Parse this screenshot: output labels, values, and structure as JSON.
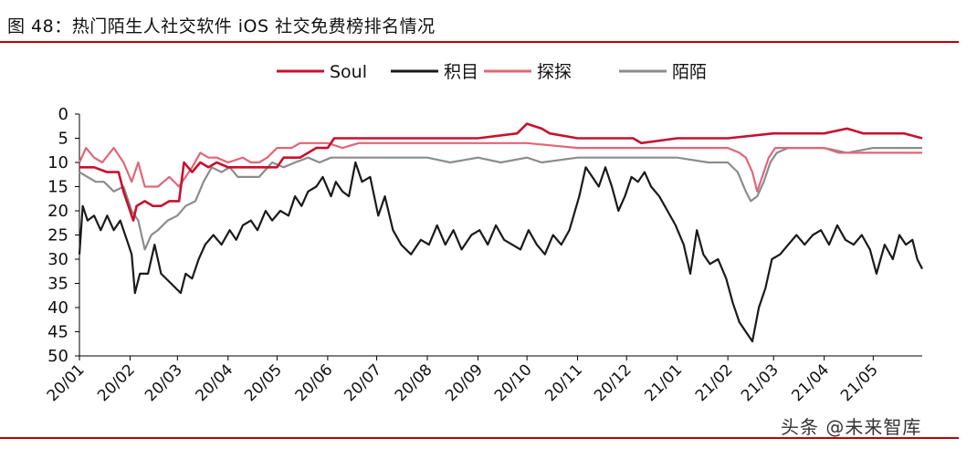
{
  "figure_title": "图 48：热门陌生人社交软件 iOS 社交免费榜排名情况",
  "watermark": "头条 @未来智库",
  "colors": {
    "rule": "#c00000",
    "axis": "#000000",
    "title": "#111111"
  },
  "chart_data": {
    "type": "line",
    "title": "",
    "xlabel": "",
    "ylabel": "",
    "ylim": [
      0,
      50
    ],
    "y_inverted": true,
    "yticks": [
      0,
      5,
      10,
      15,
      20,
      25,
      30,
      35,
      40,
      45,
      50
    ],
    "xlim": [
      "2020-01-01",
      "2021-05-31"
    ],
    "xticks": [
      "20/01",
      "20/02",
      "20/03",
      "20/04",
      "20/05",
      "20/06",
      "20/07",
      "20/08",
      "20/09",
      "20/10",
      "20/11",
      "20/12",
      "21/01",
      "21/02",
      "21/03",
      "21/04",
      "21/05"
    ],
    "grid": false,
    "legend_position": "top",
    "series": [
      {
        "name": "Soul",
        "color": "#c8102e",
        "points": [
          [
            "2020-01-01",
            11
          ],
          [
            "2020-01-10",
            11
          ],
          [
            "2020-01-18",
            12
          ],
          [
            "2020-01-25",
            12
          ],
          [
            "2020-01-28",
            16
          ],
          [
            "2020-02-03",
            22
          ],
          [
            "2020-02-05",
            19
          ],
          [
            "2020-02-10",
            18
          ],
          [
            "2020-02-15",
            19
          ],
          [
            "2020-02-20",
            19
          ],
          [
            "2020-02-25",
            18
          ],
          [
            "2020-03-02",
            18
          ],
          [
            "2020-03-05",
            10
          ],
          [
            "2020-03-10",
            12
          ],
          [
            "2020-03-15",
            10
          ],
          [
            "2020-03-20",
            11
          ],
          [
            "2020-03-25",
            10
          ],
          [
            "2020-04-01",
            11
          ],
          [
            "2020-04-10",
            11
          ],
          [
            "2020-04-20",
            11
          ],
          [
            "2020-05-01",
            11
          ],
          [
            "2020-05-05",
            9
          ],
          [
            "2020-05-15",
            9
          ],
          [
            "2020-05-25",
            7
          ],
          [
            "2020-06-01",
            7
          ],
          [
            "2020-06-05",
            5
          ],
          [
            "2020-06-15",
            5
          ],
          [
            "2020-07-01",
            5
          ],
          [
            "2020-08-01",
            5
          ],
          [
            "2020-09-01",
            5
          ],
          [
            "2020-09-25",
            4
          ],
          [
            "2020-10-01",
            2
          ],
          [
            "2020-10-10",
            3
          ],
          [
            "2020-10-15",
            4
          ],
          [
            "2020-11-01",
            5
          ],
          [
            "2020-12-01",
            5
          ],
          [
            "2020-12-05",
            5
          ],
          [
            "2020-12-10",
            6
          ],
          [
            "2021-01-01",
            5
          ],
          [
            "2021-02-01",
            5
          ],
          [
            "2021-03-01",
            4
          ],
          [
            "2021-03-15",
            4
          ],
          [
            "2021-04-01",
            4
          ],
          [
            "2021-04-15",
            3
          ],
          [
            "2021-04-25",
            4
          ],
          [
            "2021-05-01",
            4
          ],
          [
            "2021-05-20",
            4
          ],
          [
            "2021-05-31",
            5
          ]
        ]
      },
      {
        "name": "积目",
        "color": "#1a1a1a",
        "points": [
          [
            "2020-01-01",
            29
          ],
          [
            "2020-01-03",
            19
          ],
          [
            "2020-01-06",
            22
          ],
          [
            "2020-01-10",
            21
          ],
          [
            "2020-01-14",
            24
          ],
          [
            "2020-01-18",
            21
          ],
          [
            "2020-01-22",
            24
          ],
          [
            "2020-01-26",
            22
          ],
          [
            "2020-01-30",
            26
          ],
          [
            "2020-02-02",
            29
          ],
          [
            "2020-02-04",
            37
          ],
          [
            "2020-02-07",
            33
          ],
          [
            "2020-02-12",
            33
          ],
          [
            "2020-02-16",
            27
          ],
          [
            "2020-02-20",
            33
          ],
          [
            "2020-02-26",
            35
          ],
          [
            "2020-03-03",
            37
          ],
          [
            "2020-03-06",
            33
          ],
          [
            "2020-03-10",
            34
          ],
          [
            "2020-03-14",
            30
          ],
          [
            "2020-03-18",
            27
          ],
          [
            "2020-03-23",
            25
          ],
          [
            "2020-03-28",
            27
          ],
          [
            "2020-04-02",
            24
          ],
          [
            "2020-04-06",
            26
          ],
          [
            "2020-04-10",
            23
          ],
          [
            "2020-04-15",
            22
          ],
          [
            "2020-04-19",
            24
          ],
          [
            "2020-04-24",
            20
          ],
          [
            "2020-04-28",
            22
          ],
          [
            "2020-05-03",
            20
          ],
          [
            "2020-05-08",
            21
          ],
          [
            "2020-05-12",
            17
          ],
          [
            "2020-05-16",
            19
          ],
          [
            "2020-05-20",
            16
          ],
          [
            "2020-05-25",
            15
          ],
          [
            "2020-05-29",
            13
          ],
          [
            "2020-06-03",
            17
          ],
          [
            "2020-06-06",
            14
          ],
          [
            "2020-06-10",
            16
          ],
          [
            "2020-06-14",
            17
          ],
          [
            "2020-06-18",
            10
          ],
          [
            "2020-06-22",
            14
          ],
          [
            "2020-06-27",
            13
          ],
          [
            "2020-07-02",
            21
          ],
          [
            "2020-07-06",
            17
          ],
          [
            "2020-07-11",
            24
          ],
          [
            "2020-07-16",
            27
          ],
          [
            "2020-07-22",
            29
          ],
          [
            "2020-07-28",
            26
          ],
          [
            "2020-08-02",
            27
          ],
          [
            "2020-08-07",
            23
          ],
          [
            "2020-08-12",
            27
          ],
          [
            "2020-08-17",
            24
          ],
          [
            "2020-08-22",
            28
          ],
          [
            "2020-08-28",
            25
          ],
          [
            "2020-09-02",
            24
          ],
          [
            "2020-09-07",
            27
          ],
          [
            "2020-09-12",
            23
          ],
          [
            "2020-09-17",
            26
          ],
          [
            "2020-09-22",
            27
          ],
          [
            "2020-09-27",
            28
          ],
          [
            "2020-10-02",
            24
          ],
          [
            "2020-10-07",
            27
          ],
          [
            "2020-10-12",
            29
          ],
          [
            "2020-10-17",
            25
          ],
          [
            "2020-10-22",
            27
          ],
          [
            "2020-10-27",
            24
          ],
          [
            "2020-11-02",
            17
          ],
          [
            "2020-11-06",
            11
          ],
          [
            "2020-11-10",
            13
          ],
          [
            "2020-11-14",
            15
          ],
          [
            "2020-11-18",
            11
          ],
          [
            "2020-11-22",
            15
          ],
          [
            "2020-11-26",
            20
          ],
          [
            "2020-11-30",
            17
          ],
          [
            "2020-12-04",
            13
          ],
          [
            "2020-12-08",
            14
          ],
          [
            "2020-12-12",
            12
          ],
          [
            "2020-12-16",
            15
          ],
          [
            "2020-12-21",
            17
          ],
          [
            "2020-12-26",
            20
          ],
          [
            "2020-12-31",
            23
          ],
          [
            "2021-01-05",
            27
          ],
          [
            "2021-01-09",
            33
          ],
          [
            "2021-01-13",
            24
          ],
          [
            "2021-01-17",
            29
          ],
          [
            "2021-01-21",
            31
          ],
          [
            "2021-01-26",
            30
          ],
          [
            "2021-01-31",
            34
          ],
          [
            "2021-02-04",
            39
          ],
          [
            "2021-02-08",
            43
          ],
          [
            "2021-02-12",
            45
          ],
          [
            "2021-02-16",
            47
          ],
          [
            "2021-02-20",
            40
          ],
          [
            "2021-02-24",
            36
          ],
          [
            "2021-02-28",
            30
          ],
          [
            "2021-03-05",
            29
          ],
          [
            "2021-03-10",
            27
          ],
          [
            "2021-03-15",
            25
          ],
          [
            "2021-03-20",
            27
          ],
          [
            "2021-03-25",
            25
          ],
          [
            "2021-03-30",
            24
          ],
          [
            "2021-04-04",
            27
          ],
          [
            "2021-04-09",
            23
          ],
          [
            "2021-04-14",
            26
          ],
          [
            "2021-04-19",
            27
          ],
          [
            "2021-04-24",
            25
          ],
          [
            "2021-04-29",
            28
          ],
          [
            "2021-05-03",
            33
          ],
          [
            "2021-05-08",
            27
          ],
          [
            "2021-05-13",
            30
          ],
          [
            "2021-05-17",
            25
          ],
          [
            "2021-05-21",
            27
          ],
          [
            "2021-05-25",
            26
          ],
          [
            "2021-05-28",
            30
          ],
          [
            "2021-05-31",
            32
          ]
        ]
      },
      {
        "name": "探探",
        "color": "#e06677",
        "points": [
          [
            "2020-01-01",
            10
          ],
          [
            "2020-01-05",
            7
          ],
          [
            "2020-01-10",
            9
          ],
          [
            "2020-01-15",
            10
          ],
          [
            "2020-01-22",
            7
          ],
          [
            "2020-01-28",
            10
          ],
          [
            "2020-02-02",
            14
          ],
          [
            "2020-02-06",
            10
          ],
          [
            "2020-02-10",
            15
          ],
          [
            "2020-02-18",
            15
          ],
          [
            "2020-02-25",
            13
          ],
          [
            "2020-03-02",
            15
          ],
          [
            "2020-03-06",
            13
          ],
          [
            "2020-03-10",
            11
          ],
          [
            "2020-03-15",
            8
          ],
          [
            "2020-03-20",
            9
          ],
          [
            "2020-03-25",
            9
          ],
          [
            "2020-04-01",
            10
          ],
          [
            "2020-04-10",
            9
          ],
          [
            "2020-04-15",
            10
          ],
          [
            "2020-04-20",
            10
          ],
          [
            "2020-04-25",
            9
          ],
          [
            "2020-05-01",
            7
          ],
          [
            "2020-05-10",
            7
          ],
          [
            "2020-05-15",
            6
          ],
          [
            "2020-05-25",
            6
          ],
          [
            "2020-06-01",
            6
          ],
          [
            "2020-06-10",
            7
          ],
          [
            "2020-06-20",
            6
          ],
          [
            "2020-07-01",
            6
          ],
          [
            "2020-08-01",
            6
          ],
          [
            "2020-09-01",
            6
          ],
          [
            "2020-10-01",
            6
          ],
          [
            "2020-11-01",
            7
          ],
          [
            "2020-12-01",
            7
          ],
          [
            "2021-01-01",
            7
          ],
          [
            "2021-01-15",
            7
          ],
          [
            "2021-01-25",
            7
          ],
          [
            "2021-02-01",
            7
          ],
          [
            "2021-02-08",
            8
          ],
          [
            "2021-02-12",
            9
          ],
          [
            "2021-02-16",
            12
          ],
          [
            "2021-02-19",
            16
          ],
          [
            "2021-02-22",
            13
          ],
          [
            "2021-02-26",
            9
          ],
          [
            "2021-03-02",
            7
          ],
          [
            "2021-03-10",
            7
          ],
          [
            "2021-04-01",
            7
          ],
          [
            "2021-04-10",
            8
          ],
          [
            "2021-04-20",
            8
          ],
          [
            "2021-05-01",
            8
          ],
          [
            "2021-05-31",
            8
          ]
        ]
      },
      {
        "name": "陌陌",
        "color": "#8c8c8c",
        "points": [
          [
            "2020-01-01",
            12
          ],
          [
            "2020-01-06",
            13
          ],
          [
            "2020-01-11",
            14
          ],
          [
            "2020-01-16",
            14
          ],
          [
            "2020-01-22",
            16
          ],
          [
            "2020-01-28",
            15
          ],
          [
            "2020-02-02",
            20
          ],
          [
            "2020-02-06",
            22
          ],
          [
            "2020-02-10",
            28
          ],
          [
            "2020-02-14",
            25
          ],
          [
            "2020-02-18",
            24
          ],
          [
            "2020-02-24",
            22
          ],
          [
            "2020-03-01",
            21
          ],
          [
            "2020-03-06",
            19
          ],
          [
            "2020-03-12",
            18
          ],
          [
            "2020-03-17",
            14
          ],
          [
            "2020-03-22",
            11
          ],
          [
            "2020-03-28",
            12
          ],
          [
            "2020-04-02",
            11
          ],
          [
            "2020-04-07",
            13
          ],
          [
            "2020-04-14",
            13
          ],
          [
            "2020-04-20",
            13
          ],
          [
            "2020-04-28",
            10
          ],
          [
            "2020-05-05",
            11
          ],
          [
            "2020-05-12",
            10
          ],
          [
            "2020-05-20",
            9
          ],
          [
            "2020-05-27",
            10
          ],
          [
            "2020-06-03",
            9
          ],
          [
            "2020-06-12",
            9
          ],
          [
            "2020-06-20",
            9
          ],
          [
            "2020-07-01",
            9
          ],
          [
            "2020-07-15",
            9
          ],
          [
            "2020-08-01",
            9
          ],
          [
            "2020-08-15",
            10
          ],
          [
            "2020-09-01",
            9
          ],
          [
            "2020-09-15",
            10
          ],
          [
            "2020-10-01",
            9
          ],
          [
            "2020-10-10",
            10
          ],
          [
            "2020-11-01",
            9
          ],
          [
            "2020-12-01",
            9
          ],
          [
            "2020-12-15",
            9
          ],
          [
            "2021-01-01",
            9
          ],
          [
            "2021-01-20",
            10
          ],
          [
            "2021-02-01",
            10
          ],
          [
            "2021-02-07",
            12
          ],
          [
            "2021-02-12",
            16
          ],
          [
            "2021-02-15",
            18
          ],
          [
            "2021-02-19",
            17
          ],
          [
            "2021-02-23",
            14
          ],
          [
            "2021-02-27",
            10
          ],
          [
            "2021-03-03",
            8
          ],
          [
            "2021-03-10",
            7
          ],
          [
            "2021-03-25",
            7
          ],
          [
            "2021-04-01",
            7
          ],
          [
            "2021-04-15",
            8
          ],
          [
            "2021-05-01",
            7
          ],
          [
            "2021-05-31",
            7
          ]
        ]
      }
    ]
  }
}
